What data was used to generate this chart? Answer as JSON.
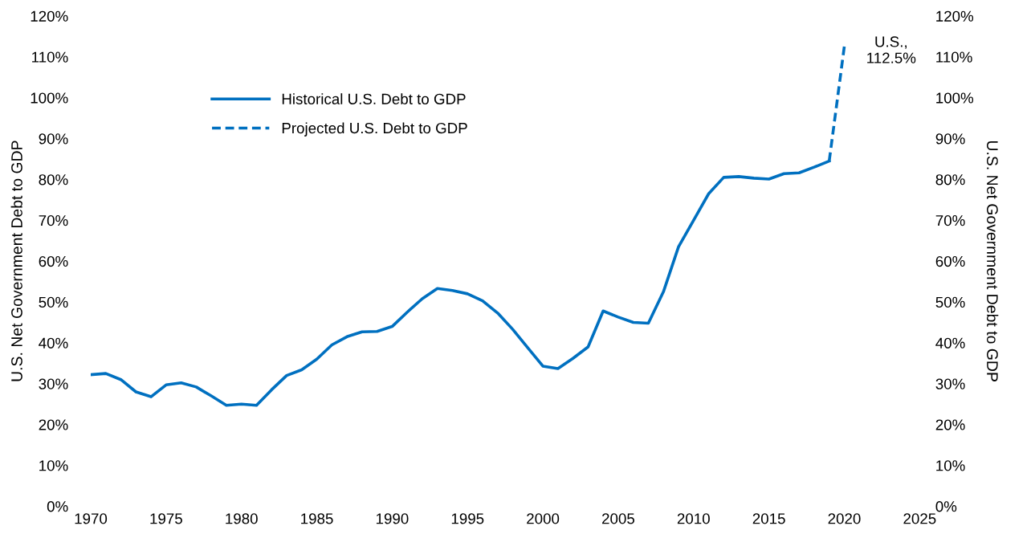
{
  "chart_data": {
    "type": "line",
    "ylabel": "U.S. Net Government Debt to GDP",
    "y2label": "U.S. Net Government Debt to GDP",
    "annotations": [
      {
        "text": "U.S.,\n112.5%",
        "x": 2020,
        "y": 112.5
      }
    ],
    "series": [
      {
        "name": "Historical U.S. Debt to GDP",
        "color": "#0070c0",
        "line_style": "solid",
        "x": [
          1970,
          1971,
          1972,
          1973,
          1974,
          1975,
          1976,
          1977,
          1978,
          1979,
          1980,
          1981,
          1982,
          1983,
          1984,
          1985,
          1986,
          1987,
          1988,
          1989,
          1990,
          1991,
          1992,
          1993,
          1994,
          1995,
          1996,
          1997,
          1998,
          1999,
          2000,
          2001,
          2002,
          2003,
          2004,
          2005,
          2006,
          2007,
          2008,
          2009,
          2010,
          2011,
          2012,
          2013,
          2014,
          2015,
          2016,
          2017,
          2018,
          2019
        ],
        "values": [
          32.2,
          32.5,
          31,
          28,
          26.8,
          29.7,
          30.2,
          29.2,
          27,
          24.7,
          25,
          24.7,
          28.5,
          32,
          33.4,
          36,
          39.5,
          41.5,
          42.7,
          42.8,
          44,
          47.5,
          50.8,
          53.3,
          52.8,
          52,
          50.3,
          47.3,
          43.3,
          38.8,
          34.3,
          33.7,
          36.2,
          39,
          47.8,
          46.3,
          45,
          44.8,
          52.5,
          63.5,
          70,
          76.5,
          80.5,
          80.7,
          80.3,
          80.1,
          81.4,
          81.6,
          83,
          84.5
        ]
      },
      {
        "name": "Projected U.S. Debt to GDP",
        "color": "#0070c0",
        "line_style": "dashed",
        "x": [
          2019,
          2020
        ],
        "values": [
          84.5,
          112.5
        ]
      }
    ],
    "xlim": [
      1970,
      2025
    ],
    "xticks": [
      1970,
      1975,
      1980,
      1985,
      1990,
      1995,
      2000,
      2005,
      2010,
      2015,
      2020,
      2025
    ],
    "ylim": [
      0,
      120
    ],
    "yticks": [
      {
        "value": 0,
        "label": "0%"
      },
      {
        "value": 10,
        "label": "10%"
      },
      {
        "value": 20,
        "label": "20%"
      },
      {
        "value": 30,
        "label": "30%"
      },
      {
        "value": 40,
        "label": "40%"
      },
      {
        "value": 50,
        "label": "50%"
      },
      {
        "value": 60,
        "label": "60%"
      },
      {
        "value": 70,
        "label": "70%"
      },
      {
        "value": 80,
        "label": "80%"
      },
      {
        "value": 90,
        "label": "90%"
      },
      {
        "value": 100,
        "label": "100%"
      },
      {
        "value": 110,
        "label": "110%"
      },
      {
        "value": 120,
        "label": "120%"
      }
    ],
    "y2lim": [
      0,
      120
    ],
    "y2ticks": [
      {
        "value": 0,
        "label": "0%"
      },
      {
        "value": 10,
        "label": "10%"
      },
      {
        "value": 20,
        "label": "20%"
      },
      {
        "value": 30,
        "label": "30%"
      },
      {
        "value": 40,
        "label": "40%"
      },
      {
        "value": 50,
        "label": "50%"
      },
      {
        "value": 60,
        "label": "60%"
      },
      {
        "value": 70,
        "label": "70%"
      },
      {
        "value": 80,
        "label": "80%"
      },
      {
        "value": 90,
        "label": "90%"
      },
      {
        "value": 100,
        "label": "100%"
      },
      {
        "value": 110,
        "label": "110%"
      },
      {
        "value": 120,
        "label": "120%"
      }
    ],
    "grid": false,
    "legend": "top left"
  }
}
